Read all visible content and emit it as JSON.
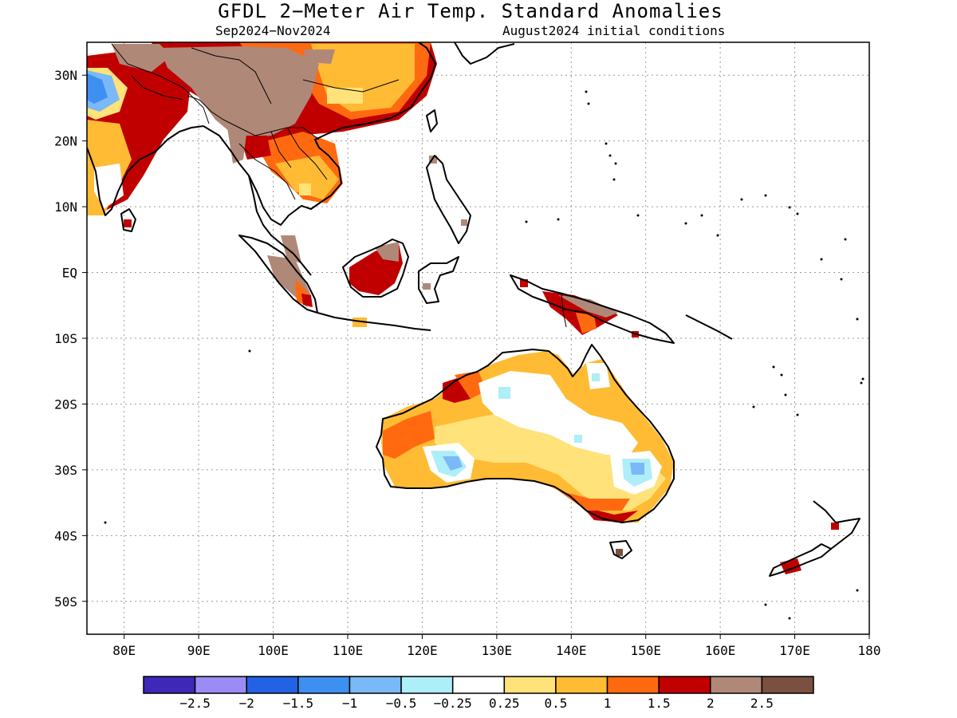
{
  "title": "GFDL 2−Meter Air Temp. Standard Anomalies",
  "period": "Sep2024−Nov2024",
  "init": "August2024 initial conditions",
  "lat_ticks": [
    "30N",
    "20N",
    "10N",
    "EQ",
    "10S",
    "20S",
    "30S",
    "40S",
    "50S"
  ],
  "lon_ticks": [
    "80E",
    "90E",
    "100E",
    "110E",
    "120E",
    "130E",
    "140E",
    "150E",
    "160E",
    "170E",
    "180"
  ],
  "colorbar": {
    "colors": [
      "#3d28b8",
      "#9b8cf5",
      "#2262e3",
      "#3d8ff0",
      "#7ab8f7",
      "#aeeef8",
      "#ffffff",
      "#ffe27a",
      "#ffbb33",
      "#ff6a10",
      "#c00000",
      "#b08878",
      "#7a5040"
    ],
    "labels": [
      "−2.5",
      "−2",
      "−1.5",
      "−1",
      "−0.5",
      "−0.25",
      "0.25",
      "0.5",
      "1",
      "1.5",
      "2",
      "2.5"
    ]
  }
}
